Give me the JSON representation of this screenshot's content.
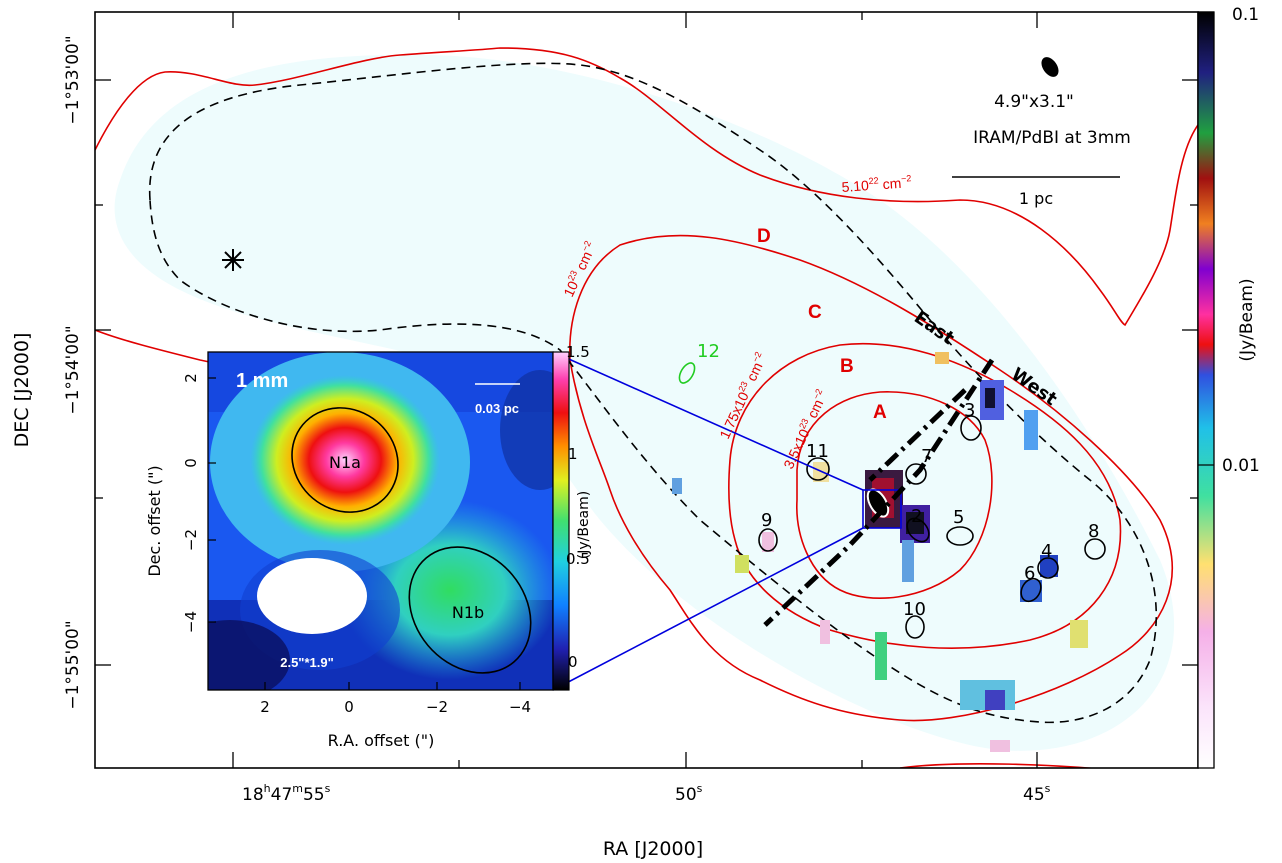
{
  "chart_data": {
    "type": "heatmap",
    "main_map": {
      "xlabel": "RA [J2000]",
      "ylabel": "DEC [J2000]",
      "x_ticks": [
        {
          "main": "18",
          "sup1": "h",
          "mid": "47",
          "sup2": "m",
          "end": "55",
          "sup3": "s"
        },
        {
          "main": "50",
          "sup3": "s"
        },
        {
          "main": "45",
          "sup3": "s"
        }
      ],
      "y_ticks": [
        "−1°53'00\"",
        "−1°54'00\"",
        "−1°55'00\""
      ],
      "colorbar": {
        "label": "(Jy/Beam)",
        "scale": "log",
        "ticks": [
          "0.1",
          "0.01"
        ]
      },
      "beam_label": "4.9\"x3.1\"",
      "instrument_label": "IRAM/PdBI at 3mm",
      "scalebar_label": "1 pc",
      "contour_labels": [
        {
          "text": "5.10",
          "sup": "22",
          "unit": " cm",
          "usup": "−2"
        },
        {
          "text": "10",
          "sup": "23",
          "unit": " cm",
          "usup": "−2"
        },
        {
          "text": "1.75x10",
          "sup": "23",
          "unit": " cm",
          "usup": "−2"
        },
        {
          "text": "3.5x10",
          "sup": "23",
          "unit": " cm",
          "usup": "−2"
        }
      ],
      "region_letters": [
        "D",
        "C",
        "B",
        "A"
      ],
      "side_labels": [
        "East",
        "West"
      ],
      "source_labels": [
        "1",
        "2",
        "3",
        "4",
        "5",
        "6",
        "7",
        "8",
        "9",
        "10",
        "11",
        "12"
      ]
    },
    "inset": {
      "label": "1 mm",
      "xlabel": "R.A. offset (\")",
      "ylabel": "Dec. offset (\")",
      "x_ticks": [
        "2",
        "0",
        "−2",
        "−4"
      ],
      "y_ticks": [
        "2",
        "0",
        "−2",
        "−4"
      ],
      "colorbar_ticks": [
        "1.5",
        "1",
        "0.5",
        "0"
      ],
      "colorbar_label": "(Jy/Beam)",
      "scalebar_label": "0.03 pc",
      "beam_label": "2.5\"*1.9\"",
      "sources": [
        "N1a",
        "N1b"
      ]
    },
    "colors": {
      "contour": "#e00000",
      "outline": "#000000",
      "zoom_lines": "#0000dd",
      "source12": "#22cc22",
      "background_fill": "#eefcfd"
    }
  }
}
